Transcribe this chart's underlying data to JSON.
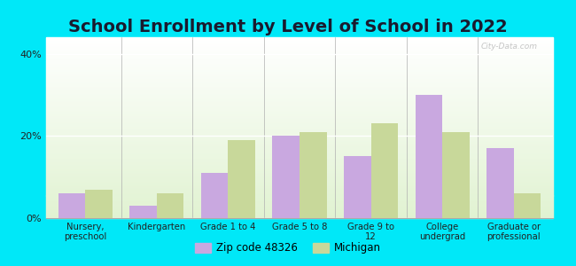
{
  "title": "School Enrollment by Level of School in 2022",
  "categories": [
    "Nursery,\npreschool",
    "Kindergarten",
    "Grade 1 to 4",
    "Grade 5 to 8",
    "Grade 9 to\n12",
    "College\nundergrad",
    "Graduate or\nprofessional"
  ],
  "zip_values": [
    6,
    3,
    11,
    20,
    15,
    30,
    17
  ],
  "mi_values": [
    7,
    6,
    19,
    21,
    23,
    21,
    6
  ],
  "zip_color": "#c9a8e0",
  "mi_color": "#c8d89a",
  "background_outer": "#00e8f8",
  "title_fontsize": 14,
  "ylabel_ticks": [
    0,
    20,
    40
  ],
  "ylim": [
    0,
    44
  ],
  "watermark": "City-Data.com",
  "legend_zip_label": "Zip code 48326",
  "legend_mi_label": "Michigan",
  "bar_width": 0.38
}
